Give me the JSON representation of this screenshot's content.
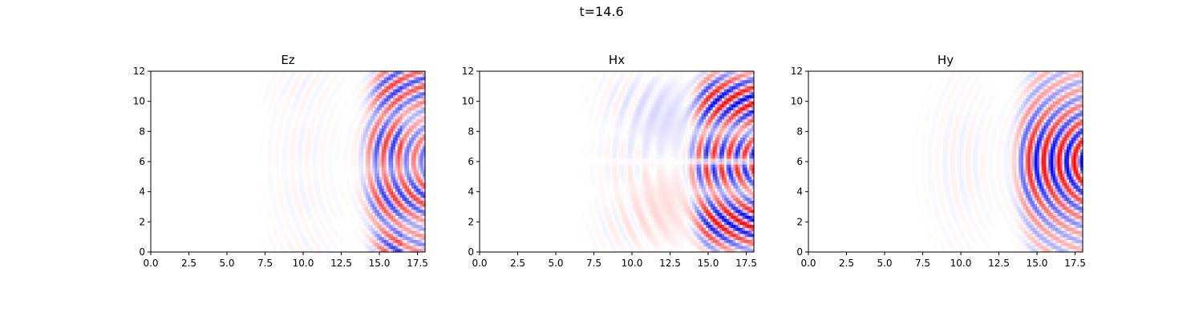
{
  "suptitle": "t=14.6",
  "chart_data": [
    {
      "type": "heatmap",
      "title": "Ez",
      "xlim": [
        0,
        18
      ],
      "ylim": [
        0,
        12
      ],
      "xticks": [
        0.0,
        2.5,
        5.0,
        7.5,
        10.0,
        12.5,
        15.0,
        17.5
      ],
      "xtick_labels": [
        "0.0",
        "2.5",
        "5.0",
        "7.5",
        "10.0",
        "12.5",
        "15.0",
        "17.5"
      ],
      "yticks": [
        0,
        2,
        4,
        6,
        8,
        10,
        12
      ],
      "ytick_labels": [
        "0",
        "2",
        "4",
        "6",
        "8",
        "10",
        "12"
      ],
      "colormap": "bwr",
      "colors": {
        "negative": "#0000ff",
        "zero": "#ffffff",
        "positive": "#ff0000"
      },
      "field": {
        "pattern": "Ez",
        "front_x": 14.2,
        "center_y": 6,
        "wavelength": 1.0,
        "amplitude": 0.8
      }
    },
    {
      "type": "heatmap",
      "title": "Hx",
      "xlim": [
        0,
        18
      ],
      "ylim": [
        0,
        12
      ],
      "xticks": [
        0.0,
        2.5,
        5.0,
        7.5,
        10.0,
        12.5,
        15.0,
        17.5
      ],
      "xtick_labels": [
        "0.0",
        "2.5",
        "5.0",
        "7.5",
        "10.0",
        "12.5",
        "15.0",
        "17.5"
      ],
      "yticks": [
        0,
        2,
        4,
        6,
        8,
        10,
        12
      ],
      "ytick_labels": [
        "0",
        "2",
        "4",
        "6",
        "8",
        "10",
        "12"
      ],
      "colormap": "bwr",
      "colors": {
        "negative": "#0000ff",
        "zero": "#ffffff",
        "positive": "#ff0000"
      },
      "field": {
        "pattern": "Hx",
        "front_x": 14.0,
        "center_y": 6,
        "wavelength": 1.0,
        "amplitude": 1.0
      }
    },
    {
      "type": "heatmap",
      "title": "Hy",
      "xlim": [
        0,
        18
      ],
      "ylim": [
        0,
        12
      ],
      "xticks": [
        0.0,
        2.5,
        5.0,
        7.5,
        10.0,
        12.5,
        15.0,
        17.5
      ],
      "xtick_labels": [
        "0.0",
        "2.5",
        "5.0",
        "7.5",
        "10.0",
        "12.5",
        "15.0",
        "17.5"
      ],
      "yticks": [
        0,
        2,
        4,
        6,
        8,
        10,
        12
      ],
      "ytick_labels": [
        "0",
        "2",
        "4",
        "6",
        "8",
        "10",
        "12"
      ],
      "colormap": "bwr",
      "colors": {
        "negative": "#0000ff",
        "zero": "#ffffff",
        "positive": "#ff0000"
      },
      "field": {
        "pattern": "Hy",
        "front_x": 13.9,
        "center_y": 6,
        "wavelength": 1.0,
        "amplitude": 1.0
      }
    }
  ]
}
